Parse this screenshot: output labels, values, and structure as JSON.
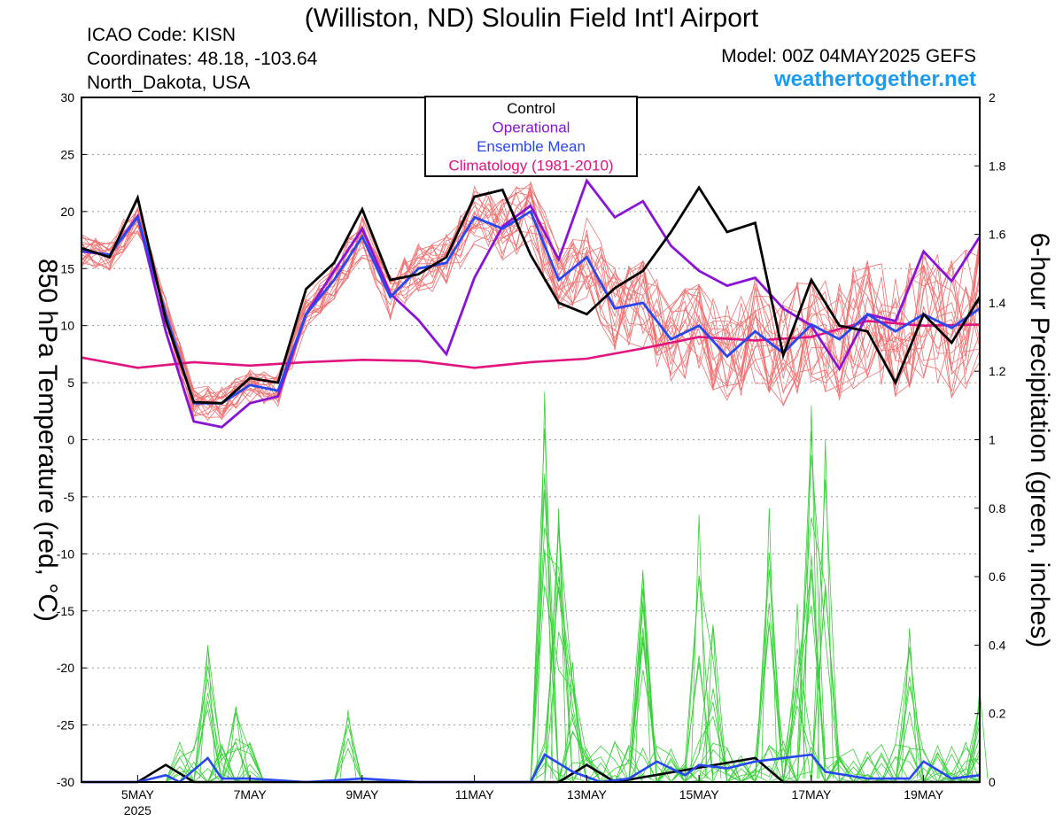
{
  "header": {
    "title": "(Williston, ND) Sloulin Field Int'l Airport",
    "icao": "ICAO Code: KISN",
    "coordinates": "Coordinates: 48.18, -103.64",
    "region": "North_Dakota, USA",
    "model": "Model: 00Z 04MAY2025 GEFS",
    "site": "weathertogether.net"
  },
  "chart_data": {
    "type": "line",
    "ylabel_left": "850 hPa Temperature (red, °C)",
    "ylabel_right": "6-hour Precipitation (green, inches)",
    "ylim_left": [
      -30,
      30
    ],
    "ylim_right": [
      0,
      2
    ],
    "yticks_left": [
      30,
      25,
      20,
      15,
      10,
      5,
      0,
      -5,
      -10,
      -15,
      -20,
      -25,
      -30
    ],
    "yticks_right": [
      2,
      1.8,
      1.6,
      1.4,
      1.2,
      1,
      0.8,
      0.6,
      0.4,
      0.2,
      0
    ],
    "x_start": "2025-05-04T00Z",
    "x_end": "2025-05-20T00Z",
    "x_ticks": [
      {
        "label": "5MAY",
        "sublabel": "2025",
        "date": "2025-05-05T00Z"
      },
      {
        "label": "7MAY",
        "date": "2025-05-07T00Z"
      },
      {
        "label": "9MAY",
        "date": "2025-05-09T00Z"
      },
      {
        "label": "11MAY",
        "date": "2025-05-11T00Z"
      },
      {
        "label": "13MAY",
        "date": "2025-05-13T00Z"
      },
      {
        "label": "15MAY",
        "date": "2025-05-15T00Z"
      },
      {
        "label": "17MAY",
        "date": "2025-05-17T00Z"
      },
      {
        "label": "19MAY",
        "date": "2025-05-19T00Z"
      }
    ],
    "grid": "dotted horizontal",
    "legend": {
      "position": "top-center",
      "entries": [
        {
          "label": "Control",
          "color": "#000000"
        },
        {
          "label": "Operational",
          "color": "#8a14d6"
        },
        {
          "label": "Ensemble Mean",
          "color": "#2847f0"
        },
        {
          "label": "Climatology (1981-2010)",
          "color": "#e0137f"
        }
      ]
    },
    "colors": {
      "members_temp": "#f07070",
      "members_precip": "#38d038",
      "control": "#000000",
      "operational": "#8a14d6",
      "mean": "#2847f0",
      "climatology": "#e0137f"
    },
    "series_temp": {
      "control": [
        [
          "2025-05-04T00Z",
          16.8
        ],
        [
          "2025-05-04T12Z",
          16.0
        ],
        [
          "2025-05-05T00Z",
          21.2
        ],
        [
          "2025-05-05T12Z",
          10.5
        ],
        [
          "2025-05-06T00Z",
          3.3
        ],
        [
          "2025-05-06T12Z",
          3.2
        ],
        [
          "2025-05-07T00Z",
          5.4
        ],
        [
          "2025-05-07T12Z",
          5.0
        ],
        [
          "2025-05-08T00Z",
          13.2
        ],
        [
          "2025-05-08T12Z",
          15.5
        ],
        [
          "2025-05-09T00Z",
          20.2
        ],
        [
          "2025-05-09T12Z",
          14.0
        ],
        [
          "2025-05-10T00Z",
          14.5
        ],
        [
          "2025-05-10T12Z",
          16.0
        ],
        [
          "2025-05-11T00Z",
          21.3
        ],
        [
          "2025-05-11T12Z",
          21.9
        ],
        [
          "2025-05-12T00Z",
          16.2
        ],
        [
          "2025-05-12T12Z",
          12.0
        ],
        [
          "2025-05-13T00Z",
          11.0
        ],
        [
          "2025-05-13T12Z",
          13.3
        ],
        [
          "2025-05-14T00Z",
          14.8
        ],
        [
          "2025-05-14T12Z",
          18.2
        ],
        [
          "2025-05-15T00Z",
          22.1
        ],
        [
          "2025-05-15T12Z",
          18.2
        ],
        [
          "2025-05-16T00Z",
          19.0
        ],
        [
          "2025-05-16T12Z",
          7.4
        ],
        [
          "2025-05-17T00Z",
          14.0
        ],
        [
          "2025-05-17T12Z",
          10.0
        ],
        [
          "2025-05-18T00Z",
          9.5
        ],
        [
          "2025-05-18T12Z",
          5.0
        ],
        [
          "2025-05-19T00Z",
          11.0
        ],
        [
          "2025-05-19T12Z",
          8.5
        ],
        [
          "2025-05-20T00Z",
          12.5
        ]
      ],
      "operational": [
        [
          "2025-05-04T00Z",
          16.5
        ],
        [
          "2025-05-04T12Z",
          16.2
        ],
        [
          "2025-05-05T00Z",
          19.6
        ],
        [
          "2025-05-05T12Z",
          9.5
        ],
        [
          "2025-05-06T00Z",
          1.6
        ],
        [
          "2025-05-06T12Z",
          1.1
        ],
        [
          "2025-05-07T00Z",
          3.2
        ],
        [
          "2025-05-07T12Z",
          3.8
        ],
        [
          "2025-05-08T00Z",
          11.0
        ],
        [
          "2025-05-08T12Z",
          14.8
        ],
        [
          "2025-05-09T00Z",
          18.5
        ],
        [
          "2025-05-09T12Z",
          12.8
        ],
        [
          "2025-05-10T00Z",
          10.5
        ],
        [
          "2025-05-10T12Z",
          7.5
        ],
        [
          "2025-05-11T00Z",
          14.2
        ],
        [
          "2025-05-11T12Z",
          18.7
        ],
        [
          "2025-05-12T00Z",
          20.5
        ],
        [
          "2025-05-12T12Z",
          15.8
        ],
        [
          "2025-05-13T00Z",
          22.7
        ],
        [
          "2025-05-13T12Z",
          19.5
        ],
        [
          "2025-05-14T00Z",
          20.9
        ],
        [
          "2025-05-14T12Z",
          17.0
        ],
        [
          "2025-05-15T00Z",
          14.8
        ],
        [
          "2025-05-15T12Z",
          13.5
        ],
        [
          "2025-05-16T00Z",
          14.2
        ],
        [
          "2025-05-16T12Z",
          11.5
        ],
        [
          "2025-05-17T00Z",
          10.0
        ],
        [
          "2025-05-17T12Z",
          6.2
        ],
        [
          "2025-05-18T00Z",
          11.0
        ],
        [
          "2025-05-18T12Z",
          10.4
        ],
        [
          "2025-05-19T00Z",
          16.5
        ],
        [
          "2025-05-19T12Z",
          13.9
        ],
        [
          "2025-05-20T00Z",
          17.8
        ]
      ],
      "mean": [
        [
          "2025-05-04T00Z",
          16.6
        ],
        [
          "2025-05-04T12Z",
          16.2
        ],
        [
          "2025-05-05T00Z",
          19.5
        ],
        [
          "2025-05-05T12Z",
          11.0
        ],
        [
          "2025-05-06T00Z",
          3.2
        ],
        [
          "2025-05-06T12Z",
          3.2
        ],
        [
          "2025-05-07T00Z",
          4.8
        ],
        [
          "2025-05-07T12Z",
          4.3
        ],
        [
          "2025-05-08T00Z",
          11.0
        ],
        [
          "2025-05-08T12Z",
          14.0
        ],
        [
          "2025-05-09T00Z",
          17.8
        ],
        [
          "2025-05-09T12Z",
          12.5
        ],
        [
          "2025-05-10T00Z",
          15.0
        ],
        [
          "2025-05-10T12Z",
          15.5
        ],
        [
          "2025-05-11T00Z",
          19.5
        ],
        [
          "2025-05-11T12Z",
          18.5
        ],
        [
          "2025-05-12T00Z",
          20.0
        ],
        [
          "2025-05-12T12Z",
          14.0
        ],
        [
          "2025-05-13T00Z",
          16.0
        ],
        [
          "2025-05-13T12Z",
          11.5
        ],
        [
          "2025-05-14T00Z",
          12.0
        ],
        [
          "2025-05-14T12Z",
          8.8
        ],
        [
          "2025-05-15T00Z",
          10.0
        ],
        [
          "2025-05-15T12Z",
          7.3
        ],
        [
          "2025-05-16T00Z",
          9.5
        ],
        [
          "2025-05-16T12Z",
          7.6
        ],
        [
          "2025-05-17T00Z",
          10.1
        ],
        [
          "2025-05-17T12Z",
          8.8
        ],
        [
          "2025-05-18T00Z",
          11.0
        ],
        [
          "2025-05-18T12Z",
          9.5
        ],
        [
          "2025-05-19T00Z",
          11.0
        ],
        [
          "2025-05-19T12Z",
          9.8
        ],
        [
          "2025-05-20T00Z",
          11.5
        ]
      ],
      "climatology": [
        [
          "2025-05-04T00Z",
          7.2
        ],
        [
          "2025-05-05T00Z",
          6.3
        ],
        [
          "2025-05-06T00Z",
          6.8
        ],
        [
          "2025-05-07T00Z",
          6.5
        ],
        [
          "2025-05-08T00Z",
          6.8
        ],
        [
          "2025-05-09T00Z",
          7.0
        ],
        [
          "2025-05-10T00Z",
          6.9
        ],
        [
          "2025-05-11T00Z",
          6.3
        ],
        [
          "2025-05-12T00Z",
          6.8
        ],
        [
          "2025-05-13T00Z",
          7.1
        ],
        [
          "2025-05-14T00Z",
          8.0
        ],
        [
          "2025-05-15T00Z",
          9.0
        ],
        [
          "2025-05-16T00Z",
          8.7
        ],
        [
          "2025-05-17T00Z",
          9.0
        ],
        [
          "2025-05-18T00Z",
          10.4
        ],
        [
          "2025-05-19T00Z",
          10.0
        ],
        [
          "2025-05-20T00Z",
          10.1
        ]
      ]
    },
    "series_precip": {
      "control": [
        [
          "2025-05-04T00Z",
          0
        ],
        [
          "2025-05-05T00Z",
          0
        ],
        [
          "2025-05-05T12Z",
          0.05
        ],
        [
          "2025-05-06T00Z",
          0
        ],
        [
          "2025-05-12T12Z",
          0
        ],
        [
          "2025-05-13T00Z",
          0.05
        ],
        [
          "2025-05-13T12Z",
          0
        ],
        [
          "2025-05-16T00Z",
          0.07
        ],
        [
          "2025-05-16T12Z",
          0
        ],
        [
          "2025-05-20T00Z",
          0
        ]
      ],
      "mean": [
        [
          "2025-05-04T00Z",
          0
        ],
        [
          "2025-05-05T00Z",
          0
        ],
        [
          "2025-05-05T12Z",
          0.02
        ],
        [
          "2025-05-05T18Z",
          0
        ],
        [
          "2025-05-06T06Z",
          0.07
        ],
        [
          "2025-05-06T12Z",
          0.01
        ],
        [
          "2025-05-07T00Z",
          0.01
        ],
        [
          "2025-05-08T00Z",
          0
        ],
        [
          "2025-05-09T00Z",
          0.01
        ],
        [
          "2025-05-10T00Z",
          0
        ],
        [
          "2025-05-12T00Z",
          0
        ],
        [
          "2025-05-12T06Z",
          0.08
        ],
        [
          "2025-05-12T18Z",
          0.03
        ],
        [
          "2025-05-13T06Z",
          0
        ],
        [
          "2025-05-13T18Z",
          0.01
        ],
        [
          "2025-05-14T06Z",
          0.06
        ],
        [
          "2025-05-14T18Z",
          0.02
        ],
        [
          "2025-05-15T00Z",
          0.05
        ],
        [
          "2025-05-15T12Z",
          0.04
        ],
        [
          "2025-05-16T00Z",
          0.06
        ],
        [
          "2025-05-16T12Z",
          0.07
        ],
        [
          "2025-05-17T00Z",
          0.08
        ],
        [
          "2025-05-17T06Z",
          0.03
        ],
        [
          "2025-05-18T00Z",
          0.01
        ],
        [
          "2025-05-18T18Z",
          0.01
        ],
        [
          "2025-05-19T00Z",
          0.06
        ],
        [
          "2025-05-19T12Z",
          0.01
        ],
        [
          "2025-05-20T00Z",
          0.02
        ]
      ]
    },
    "spikes_precip": [
      [
        "2025-05-06T06Z",
        0.4
      ],
      [
        "2025-05-06T18Z",
        0.22
      ],
      [
        "2025-05-08T18Z",
        0.21
      ],
      [
        "2025-05-12T06Z",
        1.14
      ],
      [
        "2025-05-12T12Z",
        0.8
      ],
      [
        "2025-05-12T18Z",
        0.35
      ],
      [
        "2025-05-14T00Z",
        0.62
      ],
      [
        "2025-05-15T00Z",
        0.78
      ],
      [
        "2025-05-15T06Z",
        0.46
      ],
      [
        "2025-05-16T06Z",
        0.8
      ],
      [
        "2025-05-16T18Z",
        0.52
      ],
      [
        "2025-05-17T00Z",
        1.1
      ],
      [
        "2025-05-17T06Z",
        1.0
      ],
      [
        "2025-05-18T18Z",
        0.45
      ],
      [
        "2025-05-20T00Z",
        0.27
      ]
    ]
  }
}
